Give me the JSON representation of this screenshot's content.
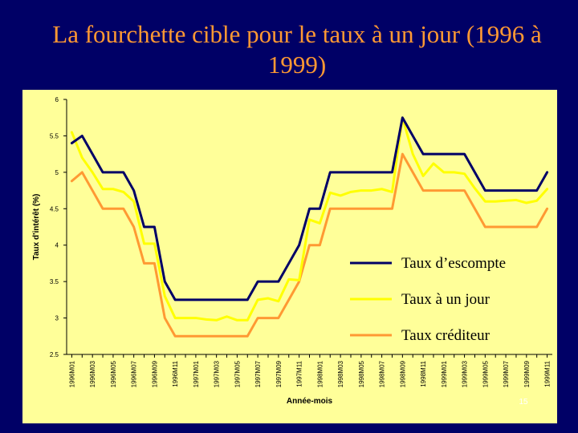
{
  "title": "La fourchette cible pour le taux à un jour (1996 à 1999)",
  "page_number": "15",
  "colors": {
    "background": "#000066",
    "title": "#ff9933",
    "plot_background": "#ffff99"
  },
  "chart_data": {
    "type": "line",
    "xlabel": "Année-mois",
    "ylabel": "Taux d'intérêt (%)",
    "ylim": [
      2.5,
      6
    ],
    "y_ticks": [
      "2.5",
      "3",
      "3.5",
      "4",
      "4.5",
      "5",
      "5.5",
      "6"
    ],
    "legend_position": "bottom-right",
    "grid": false,
    "x": [
      "1996M01",
      "1996M02",
      "1996M03",
      "1996M04",
      "1996M05",
      "1996M06",
      "1996M07",
      "1996M08",
      "1996M09",
      "1996M10",
      "1996M11",
      "1996M12",
      "1997M01",
      "1997M02",
      "1997M03",
      "1997M04",
      "1997M05",
      "1997M06",
      "1997M07",
      "1997M08",
      "1997M09",
      "1997M10",
      "1997M11",
      "1997M12",
      "1998M01",
      "1998M02",
      "1998M03",
      "1998M04",
      "1998M05",
      "1998M06",
      "1998M07",
      "1998M08",
      "1998M09",
      "1998M10",
      "1998M11",
      "1998M12",
      "1999M01",
      "1999M02",
      "1999M03",
      "1999M04",
      "1999M05",
      "1999M06",
      "1999M07",
      "1999M08",
      "1999M09",
      "1999M10",
      "1999M11"
    ],
    "x_tick_labels": [
      "1996M01",
      "1996M03",
      "1996M05",
      "1996M07",
      "1996M09",
      "1996M11",
      "1997M01",
      "1997M03",
      "1997M05",
      "1997M07",
      "1997M09",
      "1997M11",
      "1998M01",
      "1998M03",
      "1998M05",
      "1998M07",
      "1998M09",
      "1998M11",
      "1999M01",
      "1999M03",
      "1999M05",
      "1999M07",
      "1999M09",
      "1999M11"
    ],
    "series": [
      {
        "name": "Taux d’escompte",
        "color": "#000066",
        "values": [
          5.4,
          5.5,
          5.25,
          5.0,
          5.0,
          5.0,
          4.75,
          4.25,
          4.25,
          3.5,
          3.25,
          3.25,
          3.25,
          3.25,
          3.25,
          3.25,
          3.25,
          3.25,
          3.5,
          3.5,
          3.5,
          3.75,
          4.0,
          4.5,
          4.5,
          5.0,
          5.0,
          5.0,
          5.0,
          5.0,
          5.0,
          5.0,
          5.75,
          5.5,
          5.25,
          5.25,
          5.25,
          5.25,
          5.25,
          5.0,
          4.75,
          4.75,
          4.75,
          4.75,
          4.75,
          4.75,
          5.0
        ]
      },
      {
        "name": "Taux à un jour",
        "color": "#ffff00",
        "values": [
          5.55,
          5.2,
          5.0,
          4.77,
          4.77,
          4.73,
          4.6,
          4.02,
          4.02,
          3.3,
          3.0,
          3.0,
          3.0,
          2.98,
          2.97,
          3.02,
          2.97,
          2.97,
          3.25,
          3.27,
          3.23,
          3.53,
          3.52,
          4.35,
          4.3,
          4.72,
          4.68,
          4.73,
          4.75,
          4.75,
          4.77,
          4.73,
          5.75,
          5.25,
          4.95,
          5.12,
          5.0,
          5.0,
          4.98,
          4.78,
          4.6,
          4.6,
          4.61,
          4.62,
          4.58,
          4.61,
          4.77
        ]
      },
      {
        "name": "Taux créditeur",
        "color": "#ff9933",
        "values": [
          4.88,
          5.0,
          4.75,
          4.5,
          4.5,
          4.5,
          4.25,
          3.75,
          3.75,
          3.0,
          2.75,
          2.75,
          2.75,
          2.75,
          2.75,
          2.75,
          2.75,
          2.75,
          3.0,
          3.0,
          3.0,
          3.25,
          3.5,
          4.0,
          4.0,
          4.5,
          4.5,
          4.5,
          4.5,
          4.5,
          4.5,
          4.5,
          5.25,
          5.0,
          4.75,
          4.75,
          4.75,
          4.75,
          4.75,
          4.5,
          4.25,
          4.25,
          4.25,
          4.25,
          4.25,
          4.25,
          4.5
        ]
      }
    ]
  }
}
